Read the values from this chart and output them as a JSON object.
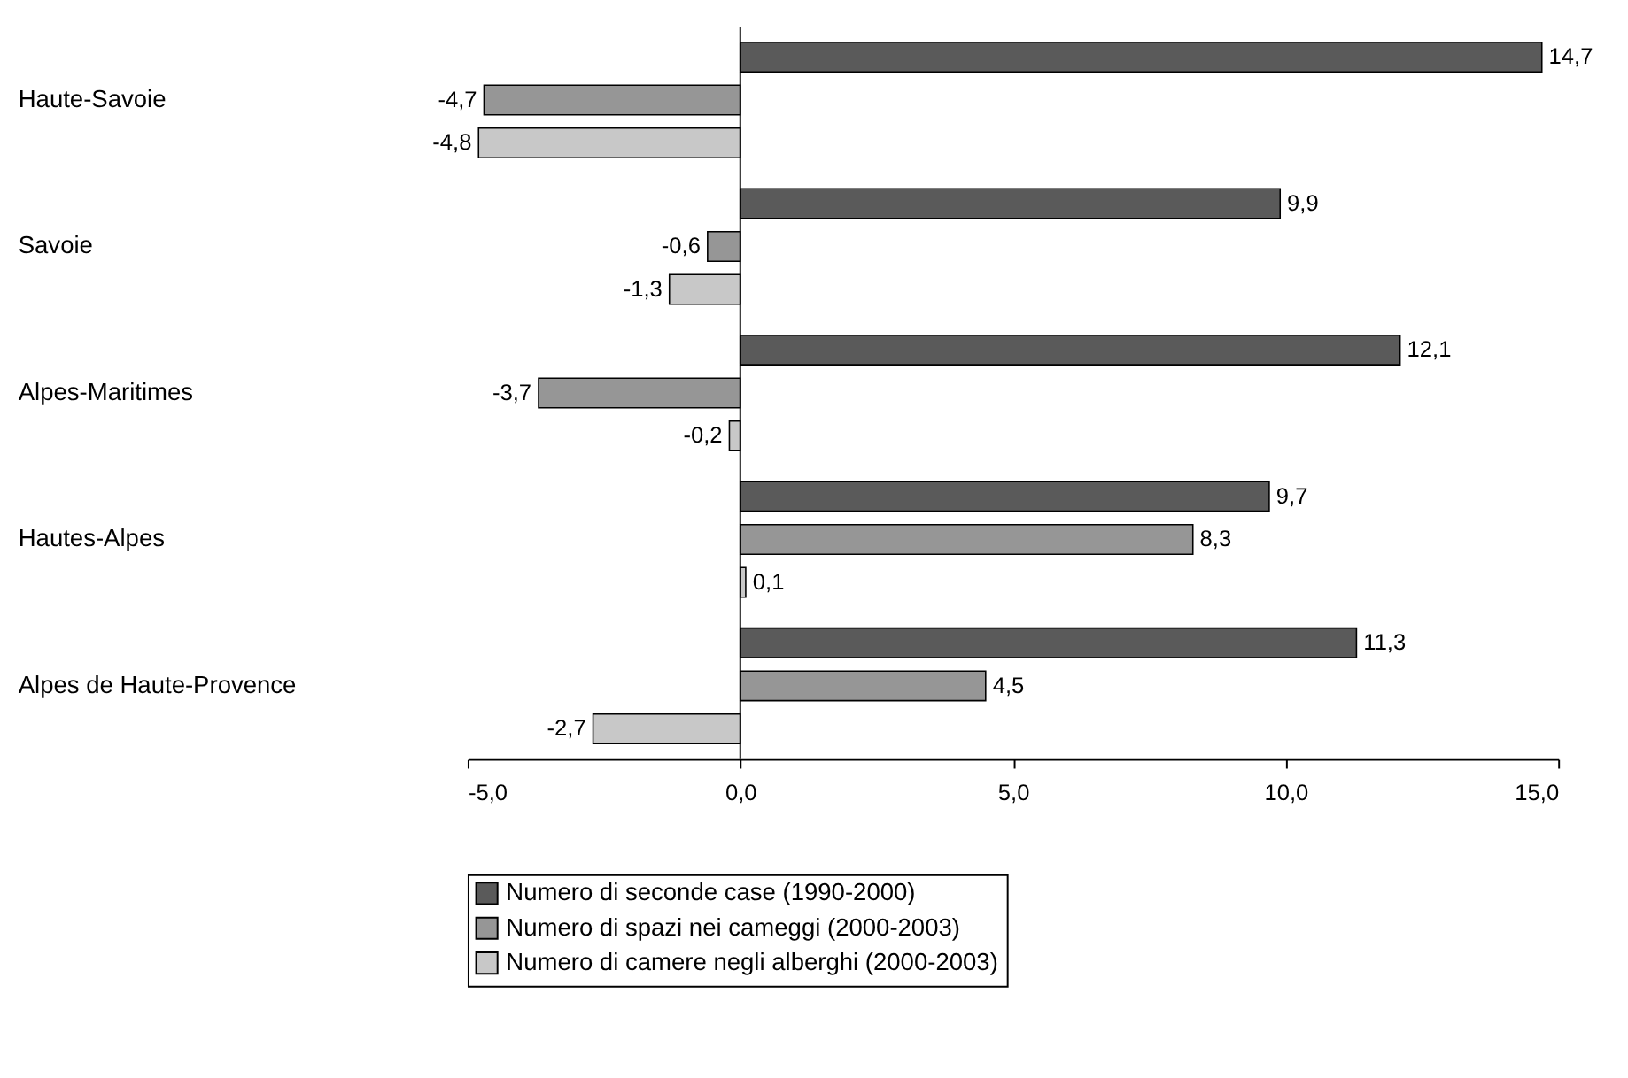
{
  "chart_data": {
    "type": "bar",
    "orientation": "horizontal",
    "categories": [
      "Haute-Savoie",
      "Savoie",
      "Alpes-Maritimes",
      "Hautes-Alpes",
      "Alpes de Haute-Provence"
    ],
    "series": [
      {
        "name": "Numero di seconde case (1990-2000)",
        "color": "#5a5a5a",
        "values": [
          14.7,
          9.9,
          12.1,
          9.7,
          11.3
        ],
        "value_labels": [
          "14,7",
          "9,9",
          "12,1",
          "9,7",
          "11,3"
        ]
      },
      {
        "name": "Numero di spazi nei cameggi (2000-2003)",
        "color": "#969696",
        "values": [
          -4.7,
          -0.6,
          -3.7,
          8.3,
          4.5
        ],
        "value_labels": [
          "-4,7",
          "-0,6",
          "-3,7",
          "8,3",
          "4,5"
        ]
      },
      {
        "name": "Numero di camere negli alberghi (2000-2003)",
        "color": "#c8c8c8",
        "values": [
          -4.8,
          -1.3,
          -0.2,
          0.1,
          -2.7
        ],
        "value_labels": [
          "-4,8",
          "-1,3",
          "-0,2",
          "0,1",
          "-2,7"
        ]
      }
    ],
    "xlim": [
      -5,
      15
    ],
    "xticks": [
      {
        "value": -5,
        "label": "-5,0"
      },
      {
        "value": 0,
        "label": "0,0"
      },
      {
        "value": 5,
        "label": "5,0"
      },
      {
        "value": 10,
        "label": "10,0"
      },
      {
        "value": 15,
        "label": "15,0"
      }
    ],
    "ref_lines": [
      {
        "axis": "x",
        "value": 0,
        "color": "#000000"
      }
    ],
    "grid": false,
    "legend": "bottom"
  }
}
